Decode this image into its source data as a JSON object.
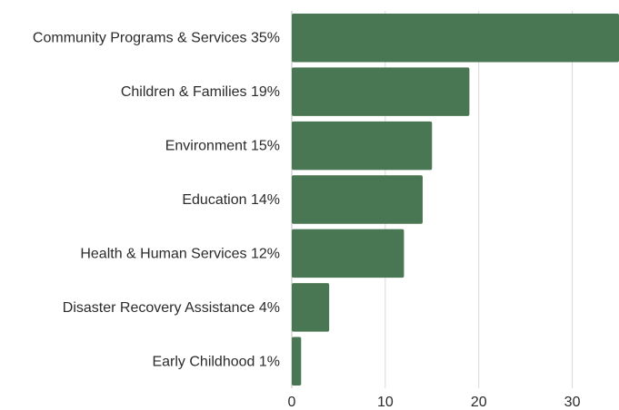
{
  "chart_data": {
    "type": "bar",
    "orientation": "horizontal",
    "categories": [
      "Community Programs & Services 35%",
      "Children & Families 19%",
      "Environment 15%",
      "Education 14%",
      "Health & Human Services 12%",
      "Disaster Recovery Assistance 4%",
      "Early Childhood 1%"
    ],
    "values": [
      35,
      19,
      15,
      14,
      12,
      4,
      1
    ],
    "xlim": [
      0,
      35
    ],
    "xticks": [
      0,
      10,
      20,
      30
    ],
    "title": "",
    "xlabel": "",
    "ylabel": "",
    "grid": "vertical",
    "bar_color": "#4a7753"
  }
}
